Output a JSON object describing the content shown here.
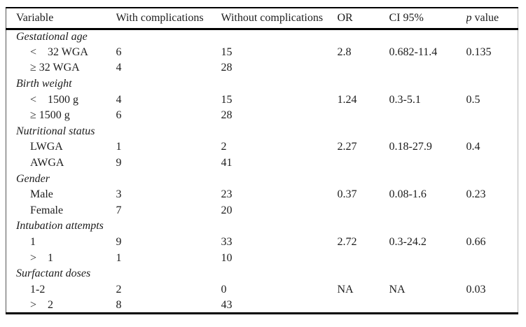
{
  "colors": {
    "background": "#ffffff",
    "text": "#1c1c1c",
    "rule": "#000000"
  },
  "table": {
    "header": {
      "variable": "Variable",
      "with_complications": "With complications",
      "without_complications": "Without complications",
      "or": "OR",
      "ci": "CI 95%",
      "p_italic": "p",
      "p_rest": " value"
    },
    "groups": [
      {
        "name": "Gestational age",
        "rows": [
          {
            "label": "<    32 WGA",
            "with_complications": "6",
            "without_complications": "15",
            "or": "2.8",
            "ci": "0.682-11.4",
            "p": "0.135"
          },
          {
            "label": "≥ 32 WGA",
            "with_complications": "4",
            "without_complications": "28",
            "or": "",
            "ci": "",
            "p": ""
          }
        ]
      },
      {
        "name": "Birth weight",
        "rows": [
          {
            "label": "<    1500 g",
            "with_complications": "4",
            "without_complications": "15",
            "or": "1.24",
            "ci": "0.3-5.1",
            "p": "0.5"
          },
          {
            "label": "≥ 1500 g",
            "with_complications": "6",
            "without_complications": "28",
            "or": "",
            "ci": "",
            "p": ""
          }
        ]
      },
      {
        "name": "Nutritional status",
        "rows": [
          {
            "label": "LWGA",
            "with_complications": "1",
            "without_complications": "2",
            "or": "2.27",
            "ci": "0.18-27.9",
            "p": "0.4"
          },
          {
            "label": "AWGA",
            "with_complications": "9",
            "without_complications": "41",
            "or": "",
            "ci": "",
            "p": ""
          }
        ]
      },
      {
        "name": "Gender",
        "rows": [
          {
            "label": "Male",
            "with_complications": "3",
            "without_complications": "23",
            "or": "0.37",
            "ci": "0.08-1.6",
            "p": "0.23"
          },
          {
            "label": "Female",
            "with_complications": "7",
            "without_complications": "20",
            "or": "",
            "ci": "",
            "p": ""
          }
        ]
      },
      {
        "name": "Intubation attempts",
        "rows": [
          {
            "label": "1",
            "with_complications": "9",
            "without_complications": "33",
            "or": "2.72",
            "ci": "0.3-24.2",
            "p": "0.66"
          },
          {
            "label": ">    1",
            "with_complications": "1",
            "without_complications": "10",
            "or": "",
            "ci": "",
            "p": ""
          }
        ]
      },
      {
        "name": "Surfactant doses",
        "rows": [
          {
            "label": "1-2",
            "with_complications": "2",
            "without_complications": "0",
            "or": "NA",
            "ci": "NA",
            "p": "0.03"
          },
          {
            "label": ">    2",
            "with_complications": "8",
            "without_complications": "43",
            "or": "",
            "ci": "",
            "p": ""
          }
        ]
      }
    ]
  }
}
